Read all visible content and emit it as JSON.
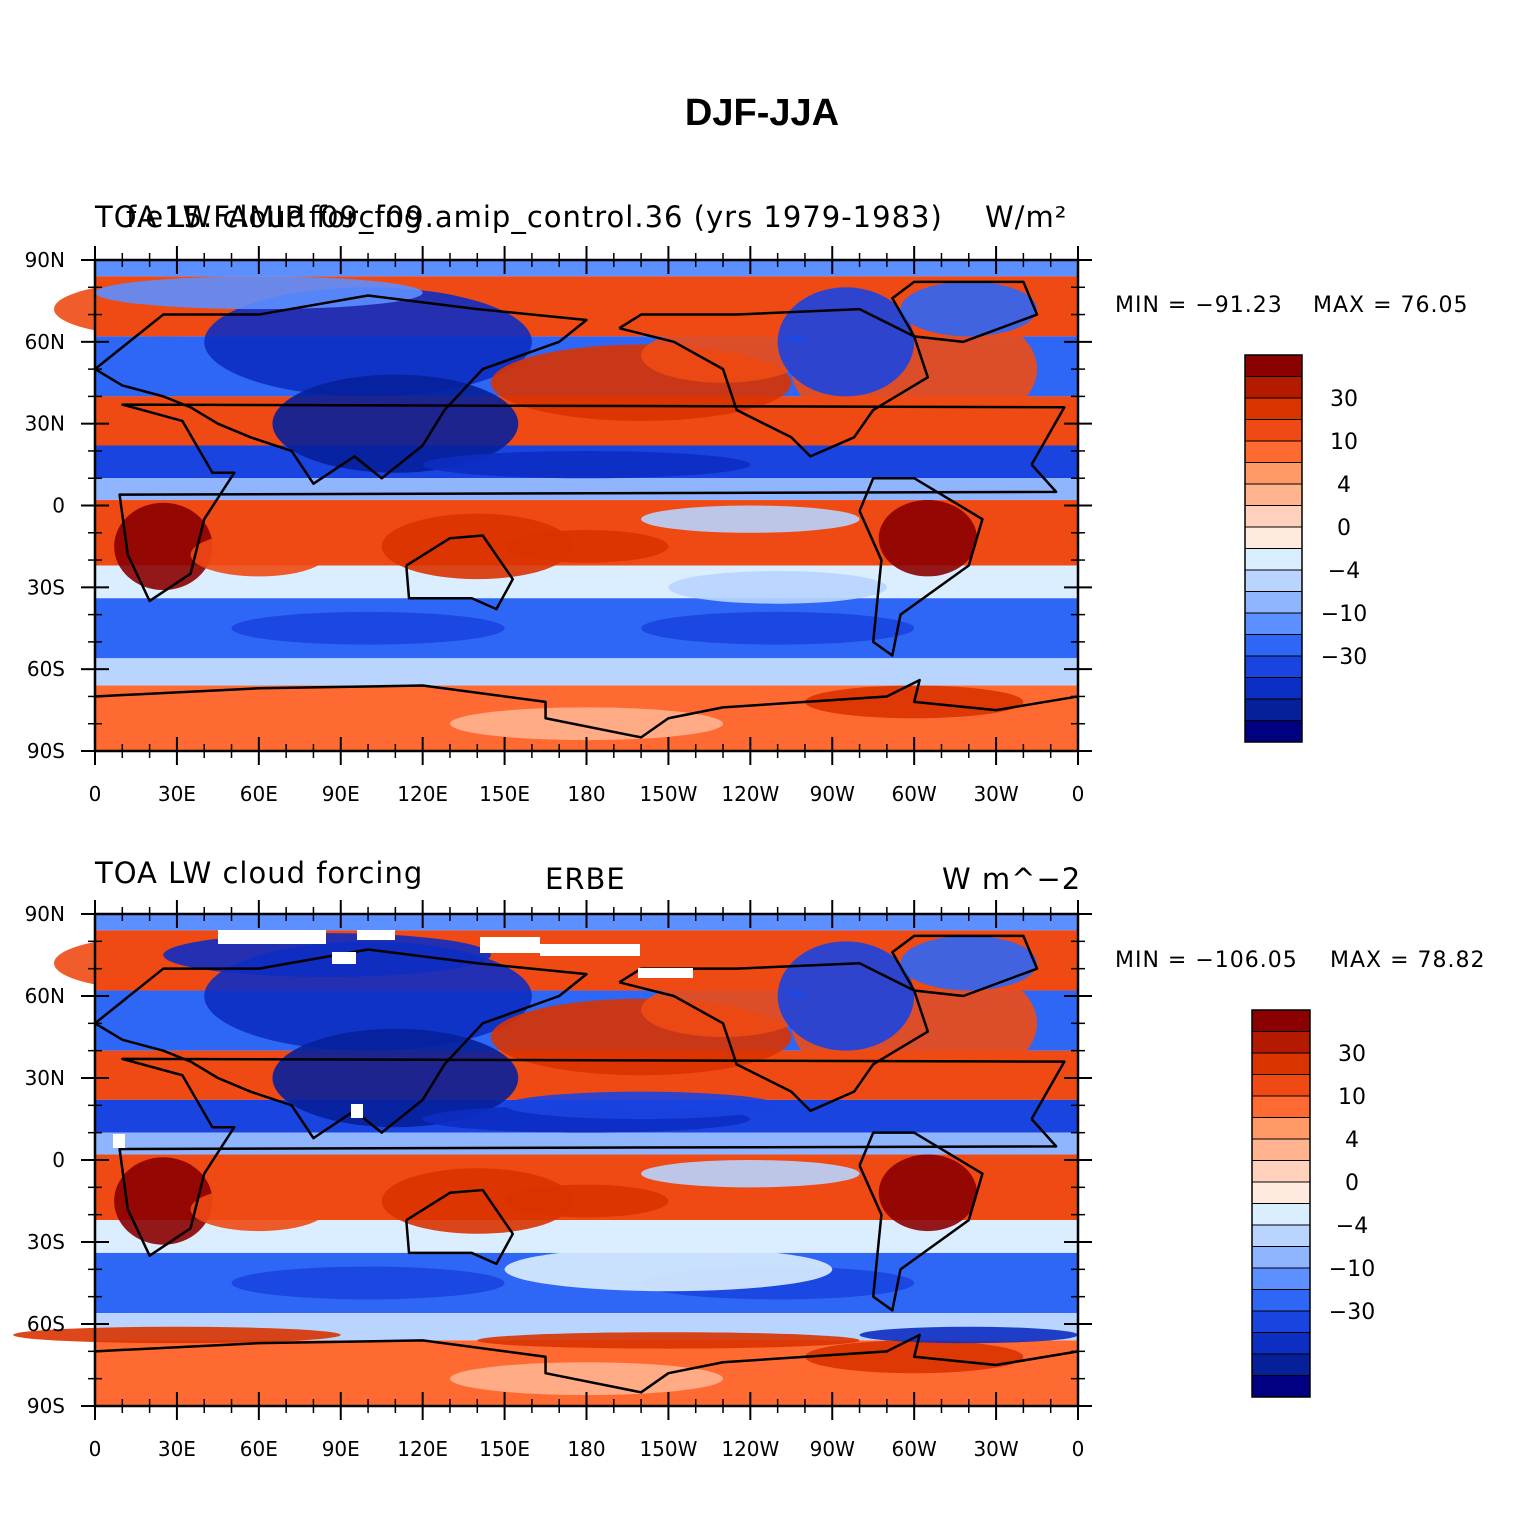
{
  "title": "DJF-JJA",
  "panels": [
    {
      "left_title": "TOA LW cloud forcing",
      "center_title": "f.e15.FAMIP.f09_f09.amip_control.36 (yrs 1979-1983)",
      "right_title": "W/m²",
      "min_label": "MIN = −91.23",
      "max_label": "MAX =  76.05"
    },
    {
      "left_title": "TOA LW cloud forcing",
      "center_title": "ERBE",
      "right_title": "W m^−2",
      "min_label": "MIN = −106.05",
      "max_label": "MAX =  78.82"
    }
  ],
  "y_ticks": [
    "90N",
    "60N",
    "30N",
    "0",
    "30S",
    "60S",
    "90S"
  ],
  "x_ticks": [
    "0",
    "30E",
    "60E",
    "90E",
    "120E",
    "150E",
    "180",
    "150W",
    "120W",
    "90W",
    "60W",
    "30W",
    "0"
  ],
  "colorbar": {
    "labels": [
      "30",
      "10",
      "4",
      "0",
      "−4",
      "−10",
      "−30"
    ],
    "colors": [
      "#8b0000",
      "#b31a00",
      "#d93300",
      "#f04a14",
      "#ff6a33",
      "#ff9966",
      "#ffb38f",
      "#ffd1bd",
      "#ffeadf",
      "#dbeeff",
      "#b8d4ff",
      "#8fb5ff",
      "#5c8fff",
      "#2e66f5",
      "#1a44e0",
      "#0d2ec2",
      "#06209a",
      "#000080"
    ]
  },
  "map_data": {
    "x_range": [
      "0",
      "0"
    ],
    "y_range": [
      "90S",
      "90N"
    ],
    "projection": "cylindrical equidistant",
    "field": "DJF minus JJA TOA longwave cloud forcing"
  }
}
